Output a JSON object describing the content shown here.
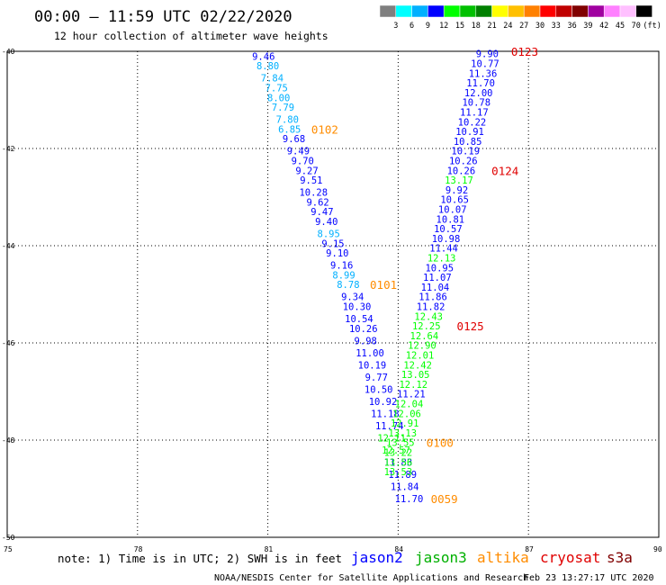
{
  "header": {
    "title": "00:00 – 11:59 UTC 02/22/2020",
    "subtitle": "12 hour collection of altimeter wave heights"
  },
  "colorbar": {
    "colors": [
      "#7f7f7f",
      "#00ffff",
      "#00b0ff",
      "#0000ff",
      "#00ff00",
      "#00c000",
      "#008000",
      "#ffff00",
      "#ffc000",
      "#ff8000",
      "#ff0000",
      "#c00000",
      "#800000",
      "#a000a0",
      "#ff80ff",
      "#ffc0ff",
      "#000000"
    ],
    "labels": [
      "3",
      "6",
      "9",
      "12",
      "15",
      "18",
      "21",
      "24",
      "27",
      "30",
      "33",
      "36",
      "39",
      "42",
      "45",
      "70",
      "(ft)"
    ]
  },
  "chart_data": {
    "type": "scatter",
    "title": "00:00 – 11:59 UTC 02/22/2020",
    "subtitle": "12 hour collection of altimeter wave heights",
    "xlim": [
      75,
      90
    ],
    "ylim": [
      -50,
      -40
    ],
    "x_ticks": [
      "75",
      "78",
      "81",
      "84",
      "87",
      "90"
    ],
    "y_ticks": [
      "-40",
      "-42",
      "-44",
      "-46",
      "-48",
      "-50"
    ],
    "grid": true,
    "series": [
      {
        "name": "jason2",
        "color": "#0000ff",
        "points": [
          {
            "x": 80.9,
            "y": -40.1,
            "v": "9.46",
            "c": "#0000ff"
          },
          {
            "x": 81.0,
            "y": -40.3,
            "v": "8.80",
            "c": "#00b0ff"
          },
          {
            "x": 81.1,
            "y": -40.55,
            "v": "7.84",
            "c": "#00b0ff"
          },
          {
            "x": 81.2,
            "y": -40.75,
            "v": "7.75",
            "c": "#00b0ff"
          },
          {
            "x": 81.25,
            "y": -40.95,
            "v": "8.00",
            "c": "#00b0ff"
          },
          {
            "x": 81.35,
            "y": -41.15,
            "v": "7.79",
            "c": "#00b0ff"
          },
          {
            "x": 81.45,
            "y": -41.4,
            "v": "7.80",
            "c": "#00b0ff"
          },
          {
            "x": 81.5,
            "y": -41.6,
            "v": "6.85",
            "c": "#00b0ff"
          },
          {
            "x": 81.6,
            "y": -41.8,
            "v": "9.68",
            "c": "#0000ff"
          },
          {
            "x": 81.7,
            "y": -42.05,
            "v": "9.49",
            "c": "#0000ff"
          },
          {
            "x": 81.8,
            "y": -42.25,
            "v": "9.70",
            "c": "#0000ff"
          },
          {
            "x": 81.9,
            "y": -42.45,
            "v": "9.27",
            "c": "#0000ff"
          },
          {
            "x": 82.0,
            "y": -42.65,
            "v": "9.51",
            "c": "#0000ff"
          },
          {
            "x": 82.05,
            "y": -42.9,
            "v": "10.28",
            "c": "#0000ff"
          },
          {
            "x": 82.15,
            "y": -43.1,
            "v": "9.62",
            "c": "#0000ff"
          },
          {
            "x": 82.25,
            "y": -43.3,
            "v": "9.47",
            "c": "#0000ff"
          },
          {
            "x": 82.35,
            "y": -43.5,
            "v": "9.40",
            "c": "#0000ff"
          },
          {
            "x": 82.4,
            "y": -43.75,
            "v": "8.95",
            "c": "#00b0ff"
          },
          {
            "x": 82.5,
            "y": -43.95,
            "v": "9.15",
            "c": "#0000ff"
          },
          {
            "x": 82.6,
            "y": -44.15,
            "v": "9.10",
            "c": "#0000ff"
          },
          {
            "x": 82.7,
            "y": -44.4,
            "v": "9.16",
            "c": "#0000ff"
          },
          {
            "x": 82.75,
            "y": -44.6,
            "v": "8.99",
            "c": "#00b0ff"
          },
          {
            "x": 82.85,
            "y": -44.8,
            "v": "8.78",
            "c": "#00b0ff"
          },
          {
            "x": 82.95,
            "y": -45.05,
            "v": "9.34",
            "c": "#0000ff"
          },
          {
            "x": 83.05,
            "y": -45.25,
            "v": "10.30",
            "c": "#0000ff"
          },
          {
            "x": 83.1,
            "y": -45.5,
            "v": "10.54",
            "c": "#0000ff"
          },
          {
            "x": 83.2,
            "y": -45.7,
            "v": "10.26",
            "c": "#0000ff"
          },
          {
            "x": 83.25,
            "y": -45.95,
            "v": "9.98",
            "c": "#0000ff"
          },
          {
            "x": 83.35,
            "y": -46.2,
            "v": "11.00",
            "c": "#0000ff"
          },
          {
            "x": 83.4,
            "y": -46.45,
            "v": "10.19",
            "c": "#0000ff"
          },
          {
            "x": 83.5,
            "y": -46.7,
            "v": "9.77",
            "c": "#0000ff"
          },
          {
            "x": 83.55,
            "y": -46.95,
            "v": "10.50",
            "c": "#0000ff"
          },
          {
            "x": 83.65,
            "y": -47.2,
            "v": "10.92",
            "c": "#0000ff"
          },
          {
            "x": 83.7,
            "y": -47.45,
            "v": "11.18",
            "c": "#0000ff"
          },
          {
            "x": 83.8,
            "y": -47.7,
            "v": "11.74",
            "c": "#0000ff"
          },
          {
            "x": 83.85,
            "y": -47.95,
            "v": "12.11",
            "c": "#00ff00"
          },
          {
            "x": 83.95,
            "y": -48.2,
            "v": "12.57",
            "c": "#00ff00"
          },
          {
            "x": 84.0,
            "y": -48.45,
            "v": "11.83",
            "c": "#0000ff"
          },
          {
            "x": 84.1,
            "y": -48.7,
            "v": "11.89",
            "c": "#0000ff"
          },
          {
            "x": 84.15,
            "y": -48.95,
            "v": "11.84",
            "c": "#0000ff"
          },
          {
            "x": 84.25,
            "y": -49.2,
            "v": "11.70",
            "c": "#0000ff"
          }
        ]
      },
      {
        "name": "jason3",
        "color": "#00c000",
        "points": [
          {
            "x": 86.05,
            "y": -40.05,
            "v": "9.90",
            "c": "#0000ff"
          },
          {
            "x": 86.0,
            "y": -40.25,
            "v": "10.77",
            "c": "#0000ff"
          },
          {
            "x": 85.95,
            "y": -40.45,
            "v": "11.36",
            "c": "#0000ff"
          },
          {
            "x": 85.9,
            "y": -40.65,
            "v": "11.70",
            "c": "#0000ff"
          },
          {
            "x": 85.85,
            "y": -40.85,
            "v": "12.00",
            "c": "#0000ff"
          },
          {
            "x": 85.8,
            "y": -41.05,
            "v": "10.78",
            "c": "#0000ff"
          },
          {
            "x": 85.75,
            "y": -41.25,
            "v": "11.17",
            "c": "#0000ff"
          },
          {
            "x": 85.7,
            "y": -41.45,
            "v": "10.22",
            "c": "#0000ff"
          },
          {
            "x": 85.65,
            "y": -41.65,
            "v": "10.91",
            "c": "#0000ff"
          },
          {
            "x": 85.6,
            "y": -41.85,
            "v": "10.85",
            "c": "#0000ff"
          },
          {
            "x": 85.55,
            "y": -42.05,
            "v": "10.19",
            "c": "#0000ff"
          },
          {
            "x": 85.5,
            "y": -42.25,
            "v": "10.26",
            "c": "#0000ff"
          },
          {
            "x": 85.45,
            "y": -42.45,
            "v": "10.26",
            "c": "#0000ff"
          },
          {
            "x": 85.4,
            "y": -42.65,
            "v": "13.17",
            "c": "#00ff00"
          },
          {
            "x": 85.35,
            "y": -42.85,
            "v": "9.92",
            "c": "#0000ff"
          },
          {
            "x": 85.3,
            "y": -43.05,
            "v": "10.65",
            "c": "#0000ff"
          },
          {
            "x": 85.25,
            "y": -43.25,
            "v": "10.07",
            "c": "#0000ff"
          },
          {
            "x": 85.2,
            "y": -43.45,
            "v": "10.81",
            "c": "#0000ff"
          },
          {
            "x": 85.15,
            "y": -43.65,
            "v": "10.57",
            "c": "#0000ff"
          },
          {
            "x": 85.1,
            "y": -43.85,
            "v": "10.98",
            "c": "#0000ff"
          },
          {
            "x": 85.05,
            "y": -44.05,
            "v": "11.44",
            "c": "#0000ff"
          },
          {
            "x": 85.0,
            "y": -44.25,
            "v": "12.13",
            "c": "#00ff00"
          },
          {
            "x": 84.95,
            "y": -44.45,
            "v": "10.95",
            "c": "#0000ff"
          },
          {
            "x": 84.9,
            "y": -44.65,
            "v": "11.07",
            "c": "#0000ff"
          },
          {
            "x": 84.85,
            "y": -44.85,
            "v": "11.04",
            "c": "#0000ff"
          },
          {
            "x": 84.8,
            "y": -45.05,
            "v": "11.86",
            "c": "#0000ff"
          },
          {
            "x": 84.75,
            "y": -45.25,
            "v": "11.82",
            "c": "#0000ff"
          },
          {
            "x": 84.7,
            "y": -45.45,
            "v": "12.43",
            "c": "#00ff00"
          },
          {
            "x": 84.65,
            "y": -45.65,
            "v": "12.25",
            "c": "#00ff00"
          },
          {
            "x": 84.6,
            "y": -45.85,
            "v": "12.64",
            "c": "#00ff00"
          },
          {
            "x": 84.55,
            "y": -46.05,
            "v": "12.90",
            "c": "#00ff00"
          },
          {
            "x": 84.5,
            "y": -46.25,
            "v": "12.01",
            "c": "#00ff00"
          },
          {
            "x": 84.45,
            "y": -46.45,
            "v": "12.42",
            "c": "#00ff00"
          },
          {
            "x": 84.4,
            "y": -46.65,
            "v": "13.05",
            "c": "#00ff00"
          },
          {
            "x": 84.35,
            "y": -46.85,
            "v": "12.12",
            "c": "#00ff00"
          },
          {
            "x": 84.3,
            "y": -47.05,
            "v": "11.21",
            "c": "#0000ff"
          },
          {
            "x": 84.25,
            "y": -47.25,
            "v": "12.04",
            "c": "#00ff00"
          },
          {
            "x": 84.2,
            "y": -47.45,
            "v": "12.06",
            "c": "#00ff00"
          },
          {
            "x": 84.15,
            "y": -47.65,
            "v": "12.91",
            "c": "#00ff00"
          },
          {
            "x": 84.1,
            "y": -47.85,
            "v": "13.13",
            "c": "#00ff00"
          },
          {
            "x": 84.05,
            "y": -48.05,
            "v": "13.55",
            "c": "#00ff00"
          },
          {
            "x": 84.0,
            "y": -48.25,
            "v": "13.22",
            "c": "#00ff00"
          },
          {
            "x": 84.0,
            "y": -48.45,
            "v": "13.56",
            "c": "#00ff00"
          },
          {
            "x": 84.0,
            "y": -48.65,
            "v": "13.53",
            "c": "#00ff00"
          }
        ]
      }
    ],
    "pass_labels": [
      {
        "text": "0123",
        "x": 86.6,
        "y": -40.0,
        "color": "#e00000"
      },
      {
        "text": "0124",
        "x": 86.15,
        "y": -42.45,
        "color": "#e00000"
      },
      {
        "text": "0125",
        "x": 85.35,
        "y": -45.65,
        "color": "#e00000"
      },
      {
        "text": "0102",
        "x": 82.0,
        "y": -41.6,
        "color": "#ff8c00"
      },
      {
        "text": "0101",
        "x": 83.35,
        "y": -44.8,
        "color": "#ff8c00"
      },
      {
        "text": "0100",
        "x": 84.65,
        "y": -48.05,
        "color": "#ff8c00"
      },
      {
        "text": "0059",
        "x": 84.75,
        "y": -49.2,
        "color": "#ff8c00"
      }
    ]
  },
  "footer": {
    "note": "note:  1) Time is in UTC; 2) SWH is in feet",
    "satellites": [
      {
        "name": "jason2",
        "color": "#0000ff"
      },
      {
        "name": "jason3",
        "color": "#00b000"
      },
      {
        "name": "altika",
        "color": "#ff8c00"
      },
      {
        "name": "cryosat",
        "color": "#e00000"
      },
      {
        "name": "s3a",
        "color": "#800000"
      }
    ],
    "credit": "NOAA/NESDIS Center for Satellite Applications and Research",
    "timestamp": "Feb 23 13:27:17 UTC 2020"
  }
}
